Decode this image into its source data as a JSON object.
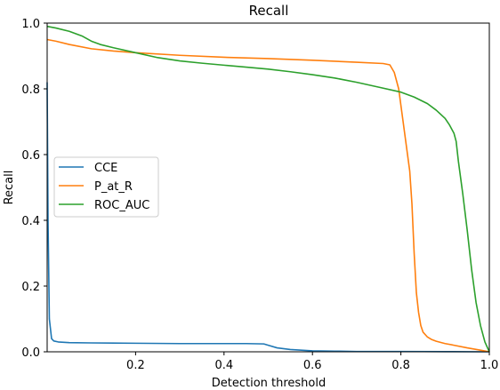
{
  "chart_data": {
    "type": "line",
    "title": "Recall",
    "xlabel": "Detection threshold",
    "ylabel": "Recall",
    "xlim": [
      0.0,
      1.0
    ],
    "ylim": [
      0.0,
      1.0
    ],
    "xticks": [
      "0.2",
      "0.4",
      "0.6",
      "0.8",
      "1.0"
    ],
    "xtick_values": [
      0.2,
      0.4,
      0.6,
      0.8,
      1.0
    ],
    "yticks": [
      "0.0",
      "0.2",
      "0.4",
      "0.6",
      "0.8",
      "1.0"
    ],
    "ytick_values": [
      0.0,
      0.2,
      0.4,
      0.6,
      0.8,
      1.0
    ],
    "grid": false,
    "legend_position": "center-left",
    "series": [
      {
        "name": "CCE",
        "color": "#1f77b4",
        "x": [
          0.0,
          0.002,
          0.005,
          0.01,
          0.015,
          0.025,
          0.05,
          0.1,
          0.2,
          0.3,
          0.4,
          0.45,
          0.49,
          0.5,
          0.52,
          0.55,
          0.6,
          0.65,
          0.7,
          0.8,
          0.9,
          1.0
        ],
        "y": [
          0.82,
          0.4,
          0.1,
          0.04,
          0.033,
          0.03,
          0.028,
          0.027,
          0.026,
          0.025,
          0.025,
          0.025,
          0.024,
          0.02,
          0.012,
          0.007,
          0.003,
          0.002,
          0.001,
          0.001,
          0.0005,
          0.0
        ]
      },
      {
        "name": "P_at_R",
        "color": "#ff7f0e",
        "x": [
          0.0,
          0.02,
          0.05,
          0.1,
          0.15,
          0.2,
          0.3,
          0.4,
          0.5,
          0.6,
          0.7,
          0.76,
          0.775,
          0.785,
          0.795,
          0.805,
          0.815,
          0.82,
          0.825,
          0.83,
          0.835,
          0.84,
          0.845,
          0.85,
          0.86,
          0.87,
          0.88,
          0.9,
          0.92,
          0.95,
          0.98,
          1.0
        ],
        "y": [
          0.95,
          0.945,
          0.935,
          0.922,
          0.915,
          0.91,
          0.902,
          0.896,
          0.892,
          0.887,
          0.881,
          0.877,
          0.873,
          0.85,
          0.8,
          0.7,
          0.6,
          0.55,
          0.45,
          0.3,
          0.18,
          0.12,
          0.08,
          0.06,
          0.045,
          0.037,
          0.032,
          0.025,
          0.02,
          0.012,
          0.005,
          0.0
        ]
      },
      {
        "name": "ROC_AUC",
        "color": "#2ca02c",
        "x": [
          0.0,
          0.02,
          0.05,
          0.08,
          0.1,
          0.12,
          0.15,
          0.2,
          0.25,
          0.3,
          0.35,
          0.4,
          0.45,
          0.5,
          0.55,
          0.6,
          0.65,
          0.7,
          0.75,
          0.8,
          0.83,
          0.86,
          0.88,
          0.9,
          0.91,
          0.92,
          0.925,
          0.93,
          0.94,
          0.95,
          0.96,
          0.97,
          0.98,
          0.99,
          1.0
        ],
        "y": [
          0.99,
          0.985,
          0.975,
          0.96,
          0.945,
          0.935,
          0.925,
          0.91,
          0.895,
          0.885,
          0.878,
          0.872,
          0.866,
          0.86,
          0.852,
          0.843,
          0.833,
          0.82,
          0.805,
          0.79,
          0.775,
          0.755,
          0.735,
          0.71,
          0.69,
          0.665,
          0.64,
          0.58,
          0.48,
          0.37,
          0.25,
          0.15,
          0.08,
          0.03,
          0.0
        ]
      }
    ]
  }
}
